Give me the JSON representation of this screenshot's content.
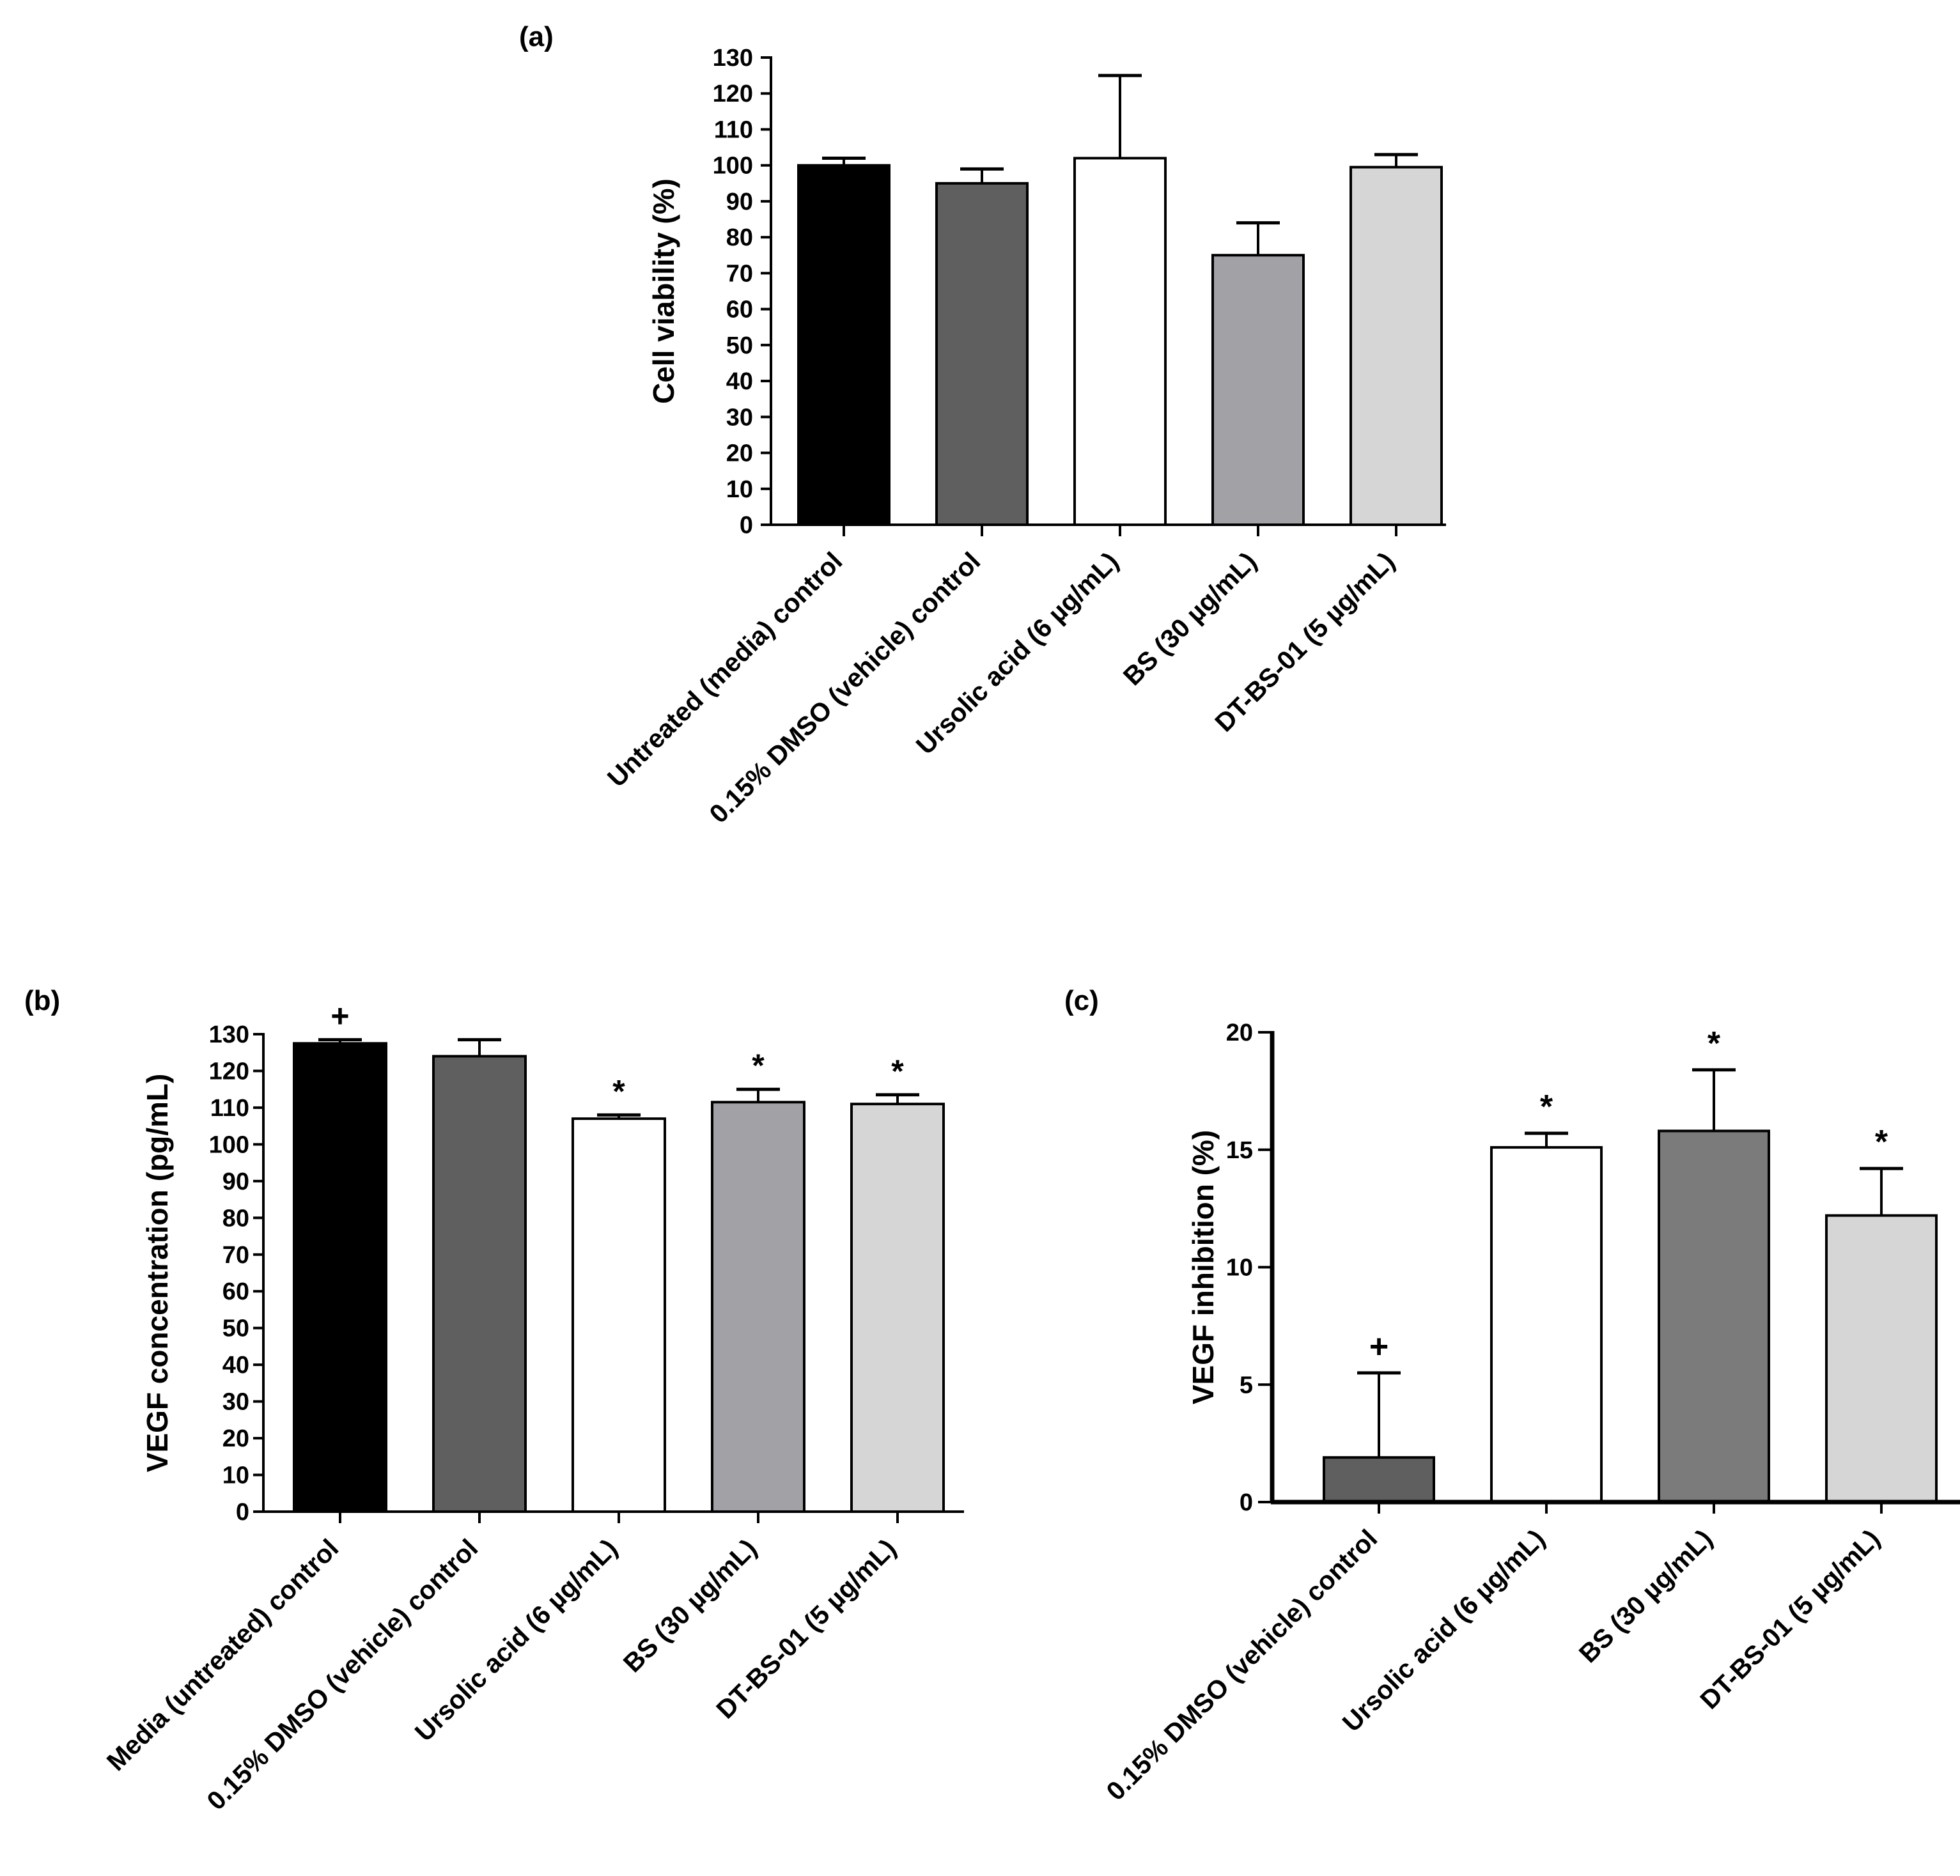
{
  "chart_data": [
    {
      "id": "a",
      "type": "bar",
      "panel_label": "(a)",
      "title": "",
      "xlabel": "",
      "ylabel": "Cell viability (%)",
      "ylim": [
        0,
        130
      ],
      "yticks": [
        0,
        10,
        20,
        30,
        40,
        50,
        60,
        70,
        80,
        90,
        100,
        110,
        120,
        130
      ],
      "categories": [
        "Untreated (media) control",
        "0.15% DMSO (vehicle) control",
        "Ursolic acid (6 µg/mL)",
        "BS (30 µg/mL)",
        "DT-BS-01 (5 µg/mL)"
      ],
      "values": [
        100,
        95,
        102,
        75,
        99.5
      ],
      "errors": [
        2,
        4,
        23,
        9,
        3.5
      ],
      "bar_colors": [
        "#000000",
        "#5f5f5f",
        "#ffffff",
        "#a1a1a6",
        "#d6d6d6"
      ],
      "marks": [
        "",
        "",
        "",
        "",
        ""
      ],
      "grid": false
    },
    {
      "id": "b",
      "type": "bar",
      "panel_label": "(b)",
      "title": "",
      "xlabel": "",
      "ylabel": "VEGF concentration (pg/mL)",
      "ylim": [
        0,
        130
      ],
      "yticks": [
        0,
        10,
        20,
        30,
        40,
        50,
        60,
        70,
        80,
        90,
        100,
        110,
        120,
        130
      ],
      "categories": [
        "Media (untreated) control",
        "0.15% DMSO (vehicle) control",
        "Ursolic acid (6 µg/mL)",
        "BS (30 µg/mL)",
        "DT-BS-01 (5 µg/mL)"
      ],
      "values": [
        127.5,
        124,
        107,
        111.5,
        111
      ],
      "errors": [
        1,
        4.5,
        1,
        3.5,
        2.5
      ],
      "bar_colors": [
        "#000000",
        "#5f5f5f",
        "#ffffff",
        "#a1a1a6",
        "#d6d6d6"
      ],
      "marks": [
        "+",
        "",
        "*",
        "*",
        "*"
      ],
      "grid": false
    },
    {
      "id": "c",
      "type": "bar",
      "panel_label": "(c)",
      "title": "",
      "xlabel": "",
      "ylabel": "VEGF inhibition (%)",
      "ylim": [
        0,
        20
      ],
      "yticks": [
        0,
        5,
        10,
        15,
        20
      ],
      "categories": [
        "0.15% DMSO (vehicle) control",
        "Ursolic acid (6 µg/mL)",
        "BS (30 µg/mL)",
        "DT-BS-01 (5 µg/mL)"
      ],
      "values": [
        1.9,
        15.1,
        15.8,
        12.2
      ],
      "errors": [
        3.6,
        0.6,
        2.6,
        2.0
      ],
      "bar_colors": [
        "#5f5f5f",
        "#ffffff",
        "#7b7b7b",
        "#d6d6d6"
      ],
      "marks": [
        "+",
        "*",
        "*",
        "*"
      ],
      "grid": false
    }
  ]
}
